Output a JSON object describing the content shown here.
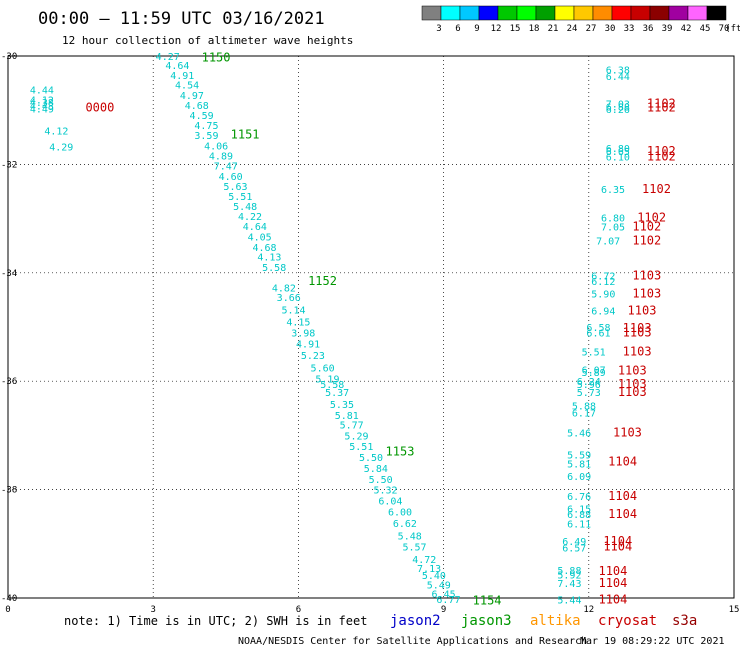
{
  "header": {
    "title": "00:00 — 11:59 UTC 03/16/2021",
    "subtitle": "12 hour collection of altimeter wave heights"
  },
  "colorbar": {
    "labels": [
      "3",
      "6",
      "9",
      "12",
      "15",
      "18",
      "21",
      "24",
      "27",
      "30",
      "33",
      "36",
      "39",
      "42",
      "45",
      "70"
    ],
    "unit": "(ft)",
    "colors": [
      "#808080",
      "#00ffff",
      "#00c8ff",
      "#0000ff",
      "#00c800",
      "#00ff00",
      "#00a000",
      "#ffff00",
      "#ffc800",
      "#ff8c00",
      "#ff0000",
      "#c80000",
      "#8b0000",
      "#a000a0",
      "#ff64ff",
      "#000000"
    ]
  },
  "note": "note: 1) Time is in UTC; 2) SWH is in feet",
  "legend": [
    {
      "label": "jason2",
      "color": "#0000c8"
    },
    {
      "label": "jason3",
      "color": "#009600"
    },
    {
      "label": "altika",
      "color": "#ff9600"
    },
    {
      "label": "cryosat",
      "color": "#c80000"
    },
    {
      "label": "s3a",
      "color": "#960000"
    }
  ],
  "footer": {
    "center": "NOAA/NESDIS Center for Satellite Applications and Research",
    "right": "Mar 19 08:29:22 UTC 2021"
  },
  "chart_data": {
    "type": "scatter",
    "xlim": [
      0,
      15
    ],
    "ylim": [
      -40,
      -30
    ],
    "x_ticks": [
      "0",
      "3",
      "6",
      "9",
      "12",
      "15"
    ],
    "y_ticks": [
      "-30",
      "-32",
      "-34",
      "-36",
      "-38",
      "-40"
    ],
    "series": [
      {
        "name": "swh",
        "points": [
          {
            "x": 0.7,
            "y": -30.62,
            "v": "4.44"
          },
          {
            "x": 0.7,
            "y": -30.8,
            "v": "4.12"
          },
          {
            "x": 0.7,
            "y": -30.85,
            "v": "4.38"
          },
          {
            "x": 0.7,
            "y": -30.91,
            "v": "4.43"
          },
          {
            "x": 0.7,
            "y": -30.97,
            "v": "4.49"
          },
          {
            "x": 1.0,
            "y": -31.37,
            "v": "4.12"
          },
          {
            "x": 1.1,
            "y": -31.67,
            "v": "4.29"
          },
          {
            "x": 3.3,
            "y": -30.0,
            "v": "4.27"
          },
          {
            "x": 3.5,
            "y": -30.17,
            "v": "4.64"
          },
          {
            "x": 3.6,
            "y": -30.35,
            "v": "4.91"
          },
          {
            "x": 3.7,
            "y": -30.53,
            "v": "4.54"
          },
          {
            "x": 3.8,
            "y": -30.72,
            "v": "4.97"
          },
          {
            "x": 3.9,
            "y": -30.9,
            "v": "4.68"
          },
          {
            "x": 4.0,
            "y": -31.09,
            "v": "4.59"
          },
          {
            "x": 4.1,
            "y": -31.27,
            "v": "4.75"
          },
          {
            "x": 4.1,
            "y": -31.46,
            "v": "3.59"
          },
          {
            "x": 4.3,
            "y": -31.65,
            "v": "4.06"
          },
          {
            "x": 4.4,
            "y": -31.84,
            "v": "4.89"
          },
          {
            "x": 4.5,
            "y": -32.02,
            "v": "7.47"
          },
          {
            "x": 4.6,
            "y": -32.21,
            "v": "4.60"
          },
          {
            "x": 4.7,
            "y": -32.4,
            "v": "5.63"
          },
          {
            "x": 4.8,
            "y": -32.58,
            "v": "5.51"
          },
          {
            "x": 4.9,
            "y": -32.77,
            "v": "5.48"
          },
          {
            "x": 5.0,
            "y": -32.95,
            "v": "4.22"
          },
          {
            "x": 5.1,
            "y": -33.14,
            "v": "4.64"
          },
          {
            "x": 5.2,
            "y": -33.33,
            "v": "4.05"
          },
          {
            "x": 5.3,
            "y": -33.52,
            "v": "4.68"
          },
          {
            "x": 5.4,
            "y": -33.7,
            "v": "4.13"
          },
          {
            "x": 5.5,
            "y": -33.89,
            "v": "5.58"
          },
          {
            "x": 5.7,
            "y": -34.27,
            "v": "4.82"
          },
          {
            "x": 5.8,
            "y": -34.45,
            "v": "3.66"
          },
          {
            "x": 5.9,
            "y": -34.68,
            "v": "5.14"
          },
          {
            "x": 6.0,
            "y": -34.9,
            "v": "4.15"
          },
          {
            "x": 6.1,
            "y": -35.1,
            "v": "3.98"
          },
          {
            "x": 6.2,
            "y": -35.3,
            "v": "4.91"
          },
          {
            "x": 6.3,
            "y": -35.52,
            "v": "5.23"
          },
          {
            "x": 6.5,
            "y": -35.75,
            "v": "5.60"
          },
          {
            "x": 6.6,
            "y": -35.95,
            "v": "5.19"
          },
          {
            "x": 6.7,
            "y": -36.05,
            "v": "5.58"
          },
          {
            "x": 6.8,
            "y": -36.2,
            "v": "5.37"
          },
          {
            "x": 6.9,
            "y": -36.42,
            "v": "5.35"
          },
          {
            "x": 7.0,
            "y": -36.62,
            "v": "5.81"
          },
          {
            "x": 7.1,
            "y": -36.8,
            "v": "5.77"
          },
          {
            "x": 7.2,
            "y": -37.0,
            "v": "5.29"
          },
          {
            "x": 7.3,
            "y": -37.2,
            "v": "5.51"
          },
          {
            "x": 7.5,
            "y": -37.4,
            "v": "5.50"
          },
          {
            "x": 7.6,
            "y": -37.6,
            "v": "5.84"
          },
          {
            "x": 7.7,
            "y": -37.8,
            "v": "5.50"
          },
          {
            "x": 7.8,
            "y": -38.0,
            "v": "5.32"
          },
          {
            "x": 7.9,
            "y": -38.2,
            "v": "6.04"
          },
          {
            "x": 8.1,
            "y": -38.4,
            "v": "6.00"
          },
          {
            "x": 8.2,
            "y": -38.62,
            "v": "6.62"
          },
          {
            "x": 8.3,
            "y": -38.85,
            "v": "5.48"
          },
          {
            "x": 8.4,
            "y": -39.05,
            "v": "5.57"
          },
          {
            "x": 8.6,
            "y": -39.28,
            "v": "4.72"
          },
          {
            "x": 8.7,
            "y": -39.45,
            "v": "7.13"
          },
          {
            "x": 8.8,
            "y": -39.58,
            "v": "5.40"
          },
          {
            "x": 8.9,
            "y": -39.75,
            "v": "5.49"
          },
          {
            "x": 9.0,
            "y": -39.92,
            "v": "6.45"
          },
          {
            "x": 9.1,
            "y": -40.02,
            "v": "6.77"
          },
          {
            "x": 12.6,
            "y": -30.25,
            "v": "6.38"
          },
          {
            "x": 12.6,
            "y": -30.37,
            "v": "6.44"
          },
          {
            "x": 12.6,
            "y": -30.88,
            "v": "7.03"
          },
          {
            "x": 12.6,
            "y": -30.93,
            "v": "6.88"
          },
          {
            "x": 12.6,
            "y": -30.98,
            "v": "6.26"
          },
          {
            "x": 12.6,
            "y": -31.7,
            "v": "6.80"
          },
          {
            "x": 12.6,
            "y": -31.75,
            "v": "6.65"
          },
          {
            "x": 12.6,
            "y": -31.85,
            "v": "6.10"
          },
          {
            "x": 12.5,
            "y": -32.45,
            "v": "6.35"
          },
          {
            "x": 12.5,
            "y": -32.98,
            "v": "6.80"
          },
          {
            "x": 12.5,
            "y": -33.15,
            "v": "7.05"
          },
          {
            "x": 12.4,
            "y": -33.4,
            "v": "7.07"
          },
          {
            "x": 12.3,
            "y": -34.05,
            "v": "6.72"
          },
          {
            "x": 12.3,
            "y": -34.15,
            "v": "6.12"
          },
          {
            "x": 12.3,
            "y": -34.38,
            "v": "5.90"
          },
          {
            "x": 12.3,
            "y": -34.7,
            "v": "6.94"
          },
          {
            "x": 12.2,
            "y": -35.0,
            "v": "6.58"
          },
          {
            "x": 12.2,
            "y": -35.1,
            "v": "6.61"
          },
          {
            "x": 12.1,
            "y": -35.45,
            "v": "5.51"
          },
          {
            "x": 12.1,
            "y": -35.78,
            "v": "6.07"
          },
          {
            "x": 12.1,
            "y": -35.83,
            "v": "5.89"
          },
          {
            "x": 12.0,
            "y": -36.0,
            "v": "6.24"
          },
          {
            "x": 12.0,
            "y": -36.05,
            "v": "5.96"
          },
          {
            "x": 12.0,
            "y": -36.2,
            "v": "5.73"
          },
          {
            "x": 11.9,
            "y": -36.45,
            "v": "5.88"
          },
          {
            "x": 11.9,
            "y": -36.58,
            "v": "6.17"
          },
          {
            "x": 11.8,
            "y": -36.95,
            "v": "5.46"
          },
          {
            "x": 11.8,
            "y": -37.35,
            "v": "5.59"
          },
          {
            "x": 11.8,
            "y": -37.52,
            "v": "5.81"
          },
          {
            "x": 11.8,
            "y": -37.75,
            "v": "6.09"
          },
          {
            "x": 11.8,
            "y": -38.12,
            "v": "6.76"
          },
          {
            "x": 11.8,
            "y": -38.35,
            "v": "6.15"
          },
          {
            "x": 11.8,
            "y": -38.45,
            "v": "6.88"
          },
          {
            "x": 11.8,
            "y": -38.63,
            "v": "6.11"
          },
          {
            "x": 11.7,
            "y": -38.95,
            "v": "6.49"
          },
          {
            "x": 11.7,
            "y": -39.07,
            "v": "6.57"
          },
          {
            "x": 11.6,
            "y": -39.48,
            "v": "5.88"
          },
          {
            "x": 11.6,
            "y": -39.57,
            "v": "5.92"
          },
          {
            "x": 11.6,
            "y": -39.72,
            "v": "7.43"
          },
          {
            "x": 11.6,
            "y": -40.03,
            "v": "5.44"
          }
        ]
      }
    ],
    "pass_labels": [
      {
        "x": 4.0,
        "y": -30.03,
        "text": "1150",
        "sat": "jason3"
      },
      {
        "x": 4.6,
        "y": -31.45,
        "text": "1151",
        "sat": "jason3"
      },
      {
        "x": 6.2,
        "y": -34.15,
        "text": "1152",
        "sat": "jason3"
      },
      {
        "x": 7.8,
        "y": -37.3,
        "text": "1153",
        "sat": "jason3"
      },
      {
        "x": 9.6,
        "y": -40.05,
        "text": "1154",
        "sat": "jason3"
      },
      {
        "x": 1.6,
        "y": -30.95,
        "text": "0000",
        "sat": "cryosat"
      },
      {
        "x": 13.2,
        "y": -30.88,
        "text": "1102",
        "sat": "cryosat"
      },
      {
        "x": 13.2,
        "y": -30.95,
        "text": "1102",
        "sat": "cryosat"
      },
      {
        "x": 13.2,
        "y": -31.75,
        "text": "1102",
        "sat": "cryosat"
      },
      {
        "x": 13.2,
        "y": -31.85,
        "text": "1102",
        "sat": "cryosat"
      },
      {
        "x": 13.1,
        "y": -32.45,
        "text": "1102",
        "sat": "cryosat"
      },
      {
        "x": 13.0,
        "y": -32.98,
        "text": "1102",
        "sat": "cryosat"
      },
      {
        "x": 12.9,
        "y": -33.15,
        "text": "1102",
        "sat": "cryosat"
      },
      {
        "x": 12.9,
        "y": -33.4,
        "text": "1102",
        "sat": "cryosat"
      },
      {
        "x": 12.9,
        "y": -34.05,
        "text": "1103",
        "sat": "cryosat"
      },
      {
        "x": 12.9,
        "y": -34.38,
        "text": "1103",
        "sat": "cryosat"
      },
      {
        "x": 12.8,
        "y": -34.7,
        "text": "1103",
        "sat": "cryosat"
      },
      {
        "x": 12.7,
        "y": -35.02,
        "text": "1103",
        "sat": "cryosat"
      },
      {
        "x": 12.7,
        "y": -35.1,
        "text": "1103",
        "sat": "cryosat"
      },
      {
        "x": 12.7,
        "y": -35.45,
        "text": "1103",
        "sat": "cryosat"
      },
      {
        "x": 12.6,
        "y": -35.8,
        "text": "1103",
        "sat": "cryosat"
      },
      {
        "x": 12.6,
        "y": -36.05,
        "text": "1103",
        "sat": "cryosat"
      },
      {
        "x": 12.6,
        "y": -36.2,
        "text": "1103",
        "sat": "cryosat"
      },
      {
        "x": 12.5,
        "y": -36.95,
        "text": "1103",
        "sat": "cryosat"
      },
      {
        "x": 12.4,
        "y": -37.48,
        "text": "1104",
        "sat": "cryosat"
      },
      {
        "x": 12.4,
        "y": -38.12,
        "text": "1104",
        "sat": "cryosat"
      },
      {
        "x": 12.4,
        "y": -38.45,
        "text": "1104",
        "sat": "cryosat"
      },
      {
        "x": 12.3,
        "y": -38.95,
        "text": "1104",
        "sat": "cryosat"
      },
      {
        "x": 12.3,
        "y": -39.05,
        "text": "1104",
        "sat": "cryosat"
      },
      {
        "x": 12.2,
        "y": -39.5,
        "text": "1104",
        "sat": "cryosat"
      },
      {
        "x": 12.2,
        "y": -39.72,
        "text": "1104",
        "sat": "cryosat"
      },
      {
        "x": 12.2,
        "y": -40.03,
        "text": "1104",
        "sat": "cryosat"
      }
    ],
    "grid": true
  }
}
